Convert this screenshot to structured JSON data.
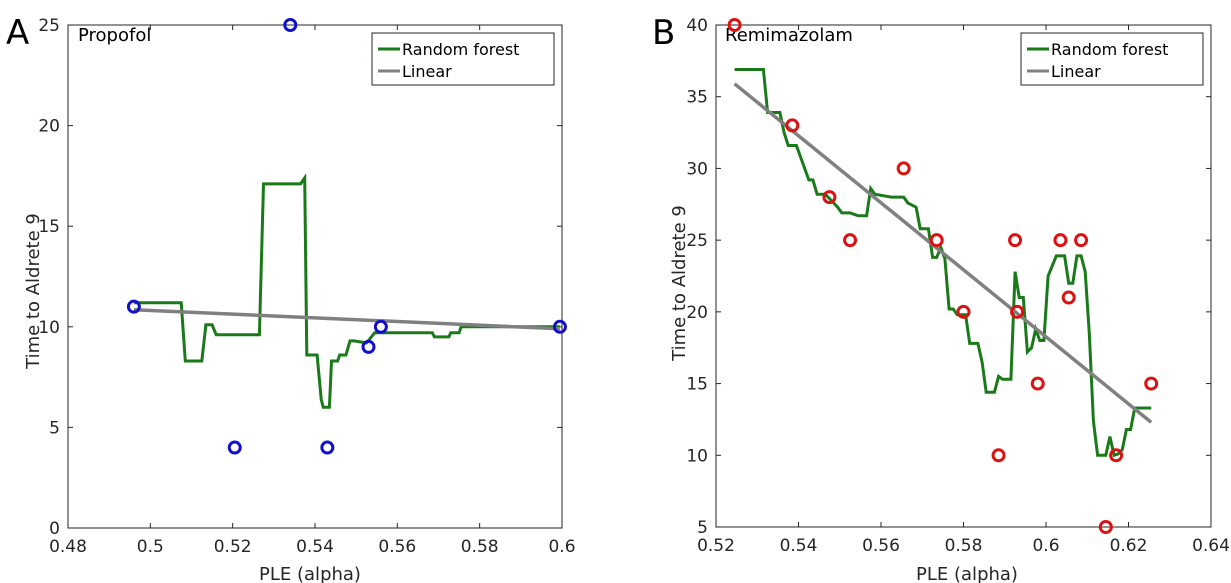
{
  "chart_data": [
    {
      "type": "scatter",
      "panel_letter": "A",
      "title": "Propofol",
      "xlabel": "PLE (alpha)",
      "ylabel": "Time to Aldrete 9",
      "xlim": [
        0.48,
        0.6
      ],
      "ylim": [
        0,
        25
      ],
      "xticks": [
        "0.48",
        "0.5",
        "0.52",
        "0.54",
        "0.56",
        "0.58",
        "0.6"
      ],
      "yticks": [
        "0",
        "5",
        "10",
        "15",
        "20",
        "25"
      ],
      "legend_position": "top-right",
      "legend": [
        "Random forest",
        "Linear"
      ],
      "colors": {
        "points": "#1010cc",
        "random_forest": "#1a7a1a",
        "linear": "#808080"
      },
      "points": {
        "x": [
          0.496,
          0.5205,
          0.534,
          0.543,
          0.553,
          0.556,
          0.5995
        ],
        "y": [
          11,
          4,
          25,
          4,
          9,
          10,
          10
        ]
      },
      "series": [
        {
          "name": "Random forest",
          "x": [
            0.496,
            0.5075,
            0.5085,
            0.5125,
            0.5135,
            0.515,
            0.516,
            0.5215,
            0.5265,
            0.5275,
            0.5365,
            0.5375,
            0.538,
            0.5385,
            0.5405,
            0.5415,
            0.542,
            0.5425,
            0.5435,
            0.544,
            0.5455,
            0.546,
            0.5465,
            0.5475,
            0.5485,
            0.549,
            0.5495,
            0.5525,
            0.5545,
            0.5565,
            0.5685,
            0.569,
            0.5725,
            0.573,
            0.575,
            0.5755,
            0.5995
          ],
          "y": [
            11.2,
            11.2,
            8.3,
            8.3,
            10.1,
            10.1,
            9.6,
            9.6,
            9.6,
            17.1,
            17.1,
            17.4,
            8.6,
            8.6,
            8.6,
            6.4,
            6.0,
            6.0,
            6.0,
            8.3,
            8.3,
            8.6,
            8.6,
            8.6,
            9.3,
            9.3,
            9.3,
            9.2,
            9.7,
            9.7,
            9.7,
            9.5,
            9.5,
            9.7,
            9.7,
            10.0,
            10.0
          ]
        },
        {
          "name": "Linear",
          "x": [
            0.496,
            0.5995
          ],
          "y": [
            10.85,
            9.9
          ]
        }
      ]
    },
    {
      "type": "scatter",
      "panel_letter": "B",
      "title": "Remimazolam",
      "xlabel": "PLE (alpha)",
      "ylabel": "Time to Aldrete 9",
      "xlim": [
        0.52,
        0.64
      ],
      "ylim": [
        5,
        40
      ],
      "xticks": [
        "0.52",
        "0.54",
        "0.56",
        "0.58",
        "0.6",
        "0.62",
        "0.64"
      ],
      "yticks": [
        "5",
        "10",
        "15",
        "20",
        "25",
        "30",
        "35",
        "40"
      ],
      "legend_position": "top-right",
      "legend": [
        "Random forest",
        "Linear"
      ],
      "colors": {
        "points": "#dd1111",
        "random_forest": "#1a7a1a",
        "linear": "#808080"
      },
      "points": {
        "x": [
          0.5245,
          0.5385,
          0.5475,
          0.5525,
          0.5655,
          0.5735,
          0.58,
          0.5885,
          0.5925,
          0.593,
          0.598,
          0.6035,
          0.6055,
          0.6085,
          0.6145,
          0.617,
          0.6255
        ],
        "y": [
          40,
          33,
          28,
          25,
          30,
          25,
          20,
          10,
          25,
          20,
          15,
          25,
          21,
          25,
          5,
          10,
          15
        ]
      },
      "series": [
        {
          "name": "Random forest",
          "x": [
            0.5245,
            0.5315,
            0.5325,
            0.5355,
            0.5365,
            0.5375,
            0.5395,
            0.5425,
            0.5435,
            0.5445,
            0.5465,
            0.5485,
            0.5495,
            0.5505,
            0.5525,
            0.5545,
            0.5565,
            0.5575,
            0.5585,
            0.5605,
            0.5625,
            0.5655,
            0.5665,
            0.5685,
            0.5695,
            0.5715,
            0.5725,
            0.5735,
            0.5745,
            0.5755,
            0.5765,
            0.5775,
            0.5785,
            0.5805,
            0.5815,
            0.5835,
            0.5845,
            0.5855,
            0.5875,
            0.5885,
            0.5895,
            0.5915,
            0.5925,
            0.5935,
            0.5945,
            0.5955,
            0.5965,
            0.5975,
            0.5985,
            0.5995,
            0.6005,
            0.6025,
            0.6045,
            0.6055,
            0.6065,
            0.6075,
            0.6085,
            0.6095,
            0.6105,
            0.6115,
            0.6125,
            0.6135,
            0.6145,
            0.6155,
            0.6165,
            0.6175,
            0.6185,
            0.6195,
            0.6205,
            0.6215,
            0.6225,
            0.6255
          ],
          "y": [
            36.9,
            36.9,
            33.9,
            33.9,
            32.5,
            31.6,
            31.6,
            29.2,
            29.2,
            28.2,
            28.2,
            27.6,
            27.3,
            26.9,
            26.9,
            26.7,
            26.7,
            28.6,
            28.2,
            28.1,
            28.0,
            28.0,
            27.6,
            27.3,
            25.8,
            25.8,
            23.8,
            23.8,
            24.5,
            23.7,
            20.2,
            20.2,
            19.8,
            19.8,
            17.8,
            17.8,
            16.5,
            14.4,
            14.4,
            15.5,
            15.3,
            15.3,
            22.8,
            21.0,
            21.0,
            17.2,
            17.5,
            18.8,
            18.0,
            18.0,
            22.5,
            23.9,
            23.9,
            22.0,
            22.0,
            23.9,
            23.9,
            22.8,
            18.5,
            12.4,
            10.0,
            10.0,
            10.0,
            11.3,
            10.0,
            10.1,
            10.4,
            11.8,
            11.8,
            13.3,
            13.3,
            13.3
          ]
        },
        {
          "name": "Linear",
          "x": [
            0.5245,
            0.6255
          ],
          "y": [
            35.9,
            12.3
          ]
        }
      ]
    }
  ]
}
